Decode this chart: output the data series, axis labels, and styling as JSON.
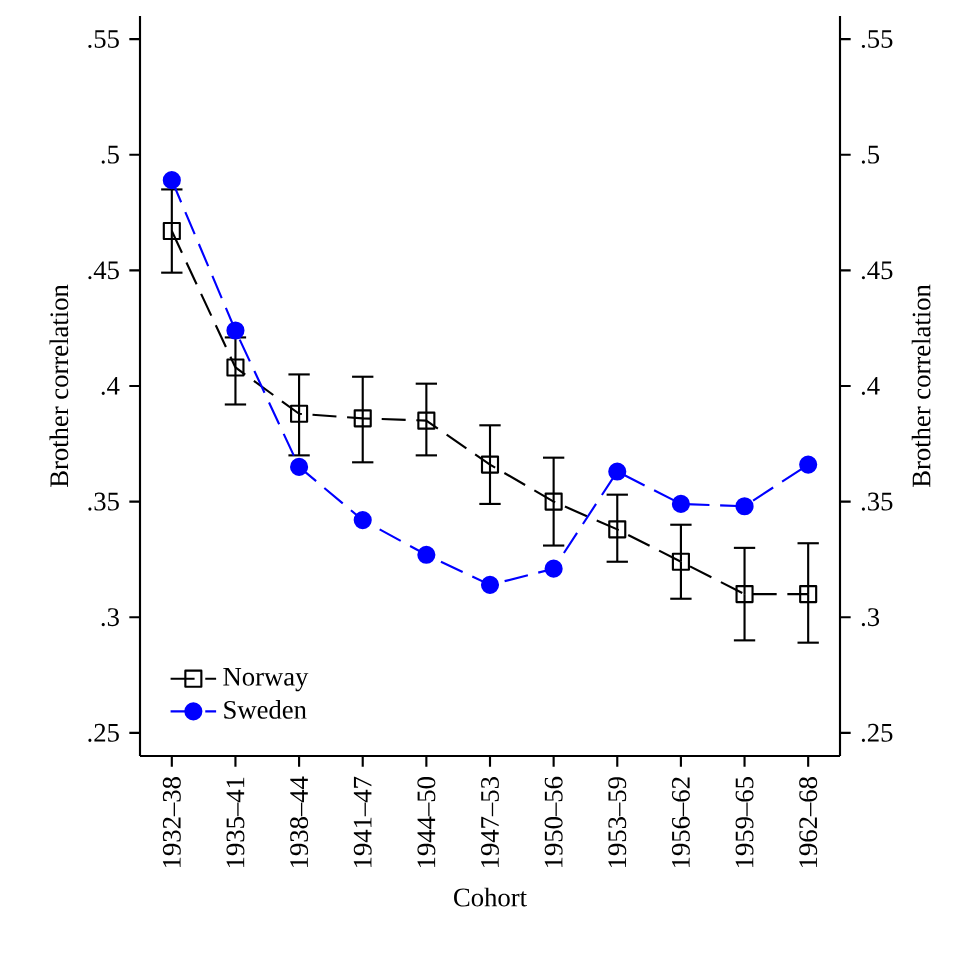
{
  "chart_data": {
    "type": "line",
    "xlabel": "Cohort",
    "ylabel": "Brother correlation",
    "y2label": "Brother correlation",
    "categories": [
      "1932–38",
      "1935–41",
      "1938–44",
      "1941–47",
      "1944–50",
      "1947–53",
      "1950–56",
      "1953–59",
      "1956–62",
      "1959–65",
      "1962–68"
    ],
    "series": [
      {
        "name": "Norway",
        "color": "#000000",
        "marker": "square",
        "values": [
          0.467,
          0.408,
          0.388,
          0.386,
          0.385,
          0.366,
          0.35,
          0.338,
          0.324,
          0.31,
          0.31
        ],
        "errors": [
          [
            0.449,
            0.485
          ],
          [
            0.392,
            0.421
          ],
          [
            0.37,
            0.405
          ],
          [
            0.367,
            0.404
          ],
          [
            0.37,
            0.401
          ],
          [
            0.349,
            0.383
          ],
          [
            0.331,
            0.369
          ],
          [
            0.324,
            0.353
          ],
          [
            0.308,
            0.34
          ],
          [
            0.29,
            0.33
          ],
          [
            0.289,
            0.332
          ]
        ]
      },
      {
        "name": "Sweden",
        "color": "#0000ff",
        "marker": "circle",
        "values": [
          0.489,
          0.424,
          0.365,
          0.342,
          0.327,
          0.314,
          0.321,
          0.363,
          0.349,
          0.348,
          0.366
        ]
      }
    ],
    "ylim": [
      0.24,
      0.56
    ],
    "yticks": [
      {
        "value": 0.25,
        "label": ".25"
      },
      {
        "value": 0.3,
        "label": ".3"
      },
      {
        "value": 0.35,
        "label": ".35"
      },
      {
        "value": 0.4,
        "label": ".4"
      },
      {
        "value": 0.45,
        "label": ".45"
      },
      {
        "value": 0.5,
        "label": ".5"
      },
      {
        "value": 0.55,
        "label": ".55"
      }
    ],
    "y2lim": [
      0.24,
      0.56
    ],
    "y2ticks": [
      {
        "value": 0.25,
        "label": ".25"
      },
      {
        "value": 0.3,
        "label": ".3"
      },
      {
        "value": 0.35,
        "label": ".35"
      },
      {
        "value": 0.4,
        "label": ".4"
      },
      {
        "value": 0.45,
        "label": ".45"
      },
      {
        "value": 0.5,
        "label": ".5"
      },
      {
        "value": 0.55,
        "label": ".55"
      }
    ],
    "grid": false,
    "legend": "bottom left",
    "line_style": "dashed"
  }
}
